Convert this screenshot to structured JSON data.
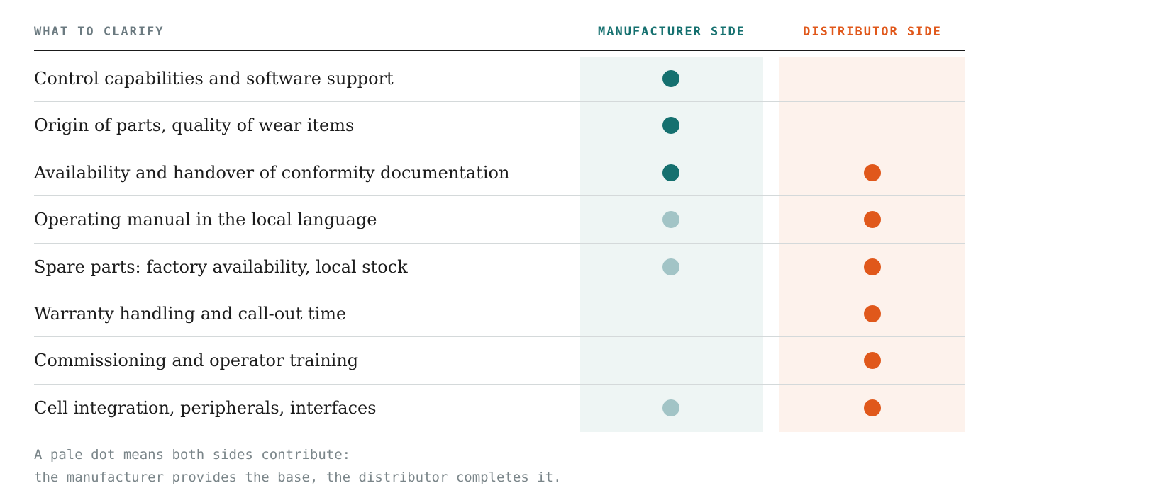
{
  "header": {
    "topic": "WHAT TO CLARIFY",
    "manufacturer": "MANUFACTURER SIDE",
    "distributor": "DISTRIBUTOR SIDE"
  },
  "colors": {
    "manufacturer_full": "#15706f",
    "manufacturer_pale": "#a2c4c6",
    "distributor_full": "#e0581b",
    "manufacturer_column_bg": "#eef5f4",
    "distributor_column_bg": "#fdf2ec"
  },
  "rows": [
    {
      "topic": "Control capabilities and software support",
      "manufacturer": "full",
      "distributor": "none"
    },
    {
      "topic": "Origin of parts, quality of wear items",
      "manufacturer": "full",
      "distributor": "none"
    },
    {
      "topic": "Availability and handover of conformity documentation",
      "manufacturer": "full",
      "distributor": "full"
    },
    {
      "topic": "Operating manual in the local language",
      "manufacturer": "pale",
      "distributor": "full"
    },
    {
      "topic": "Spare parts: factory availability, local stock",
      "manufacturer": "pale",
      "distributor": "full"
    },
    {
      "topic": "Warranty handling and call-out time",
      "manufacturer": "none",
      "distributor": "full"
    },
    {
      "topic": "Commissioning and operator training",
      "manufacturer": "none",
      "distributor": "full"
    },
    {
      "topic": "Cell integration, peripherals, interfaces",
      "manufacturer": "pale",
      "distributor": "full"
    }
  ],
  "note": {
    "line1": "A pale dot means both sides contribute:",
    "line2": "the manufacturer provides the base, the distributor completes it."
  }
}
